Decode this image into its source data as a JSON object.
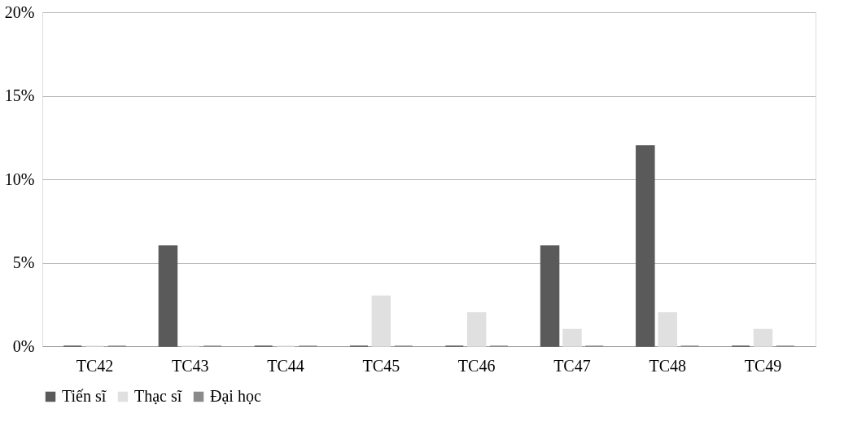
{
  "chart_data": {
    "type": "bar",
    "categories": [
      "TC42",
      "TC43",
      "TC44",
      "TC45",
      "TC46",
      "TC47",
      "TC48",
      "TC49"
    ],
    "series": [
      {
        "name": "Tiến sĩ",
        "color": "#5a5a5a",
        "values": [
          0,
          6,
          0,
          0,
          0,
          6,
          12,
          0
        ]
      },
      {
        "name": "Thạc sĩ",
        "color": "#e0e0e0",
        "values": [
          0,
          0,
          0,
          3,
          2,
          1,
          2,
          1
        ]
      },
      {
        "name": "Đại học",
        "color": "#8a8a8a",
        "values": [
          0,
          0,
          0,
          0,
          0,
          0,
          0,
          0
        ]
      }
    ],
    "ylim": [
      0,
      20
    ],
    "yticks": [
      {
        "value": 0,
        "label": "0%"
      },
      {
        "value": 5,
        "label": "5%"
      },
      {
        "value": 10,
        "label": "10%"
      },
      {
        "value": 15,
        "label": "15%"
      },
      {
        "value": 20,
        "label": "20%"
      }
    ],
    "grid": "y",
    "legend": "bottom"
  }
}
